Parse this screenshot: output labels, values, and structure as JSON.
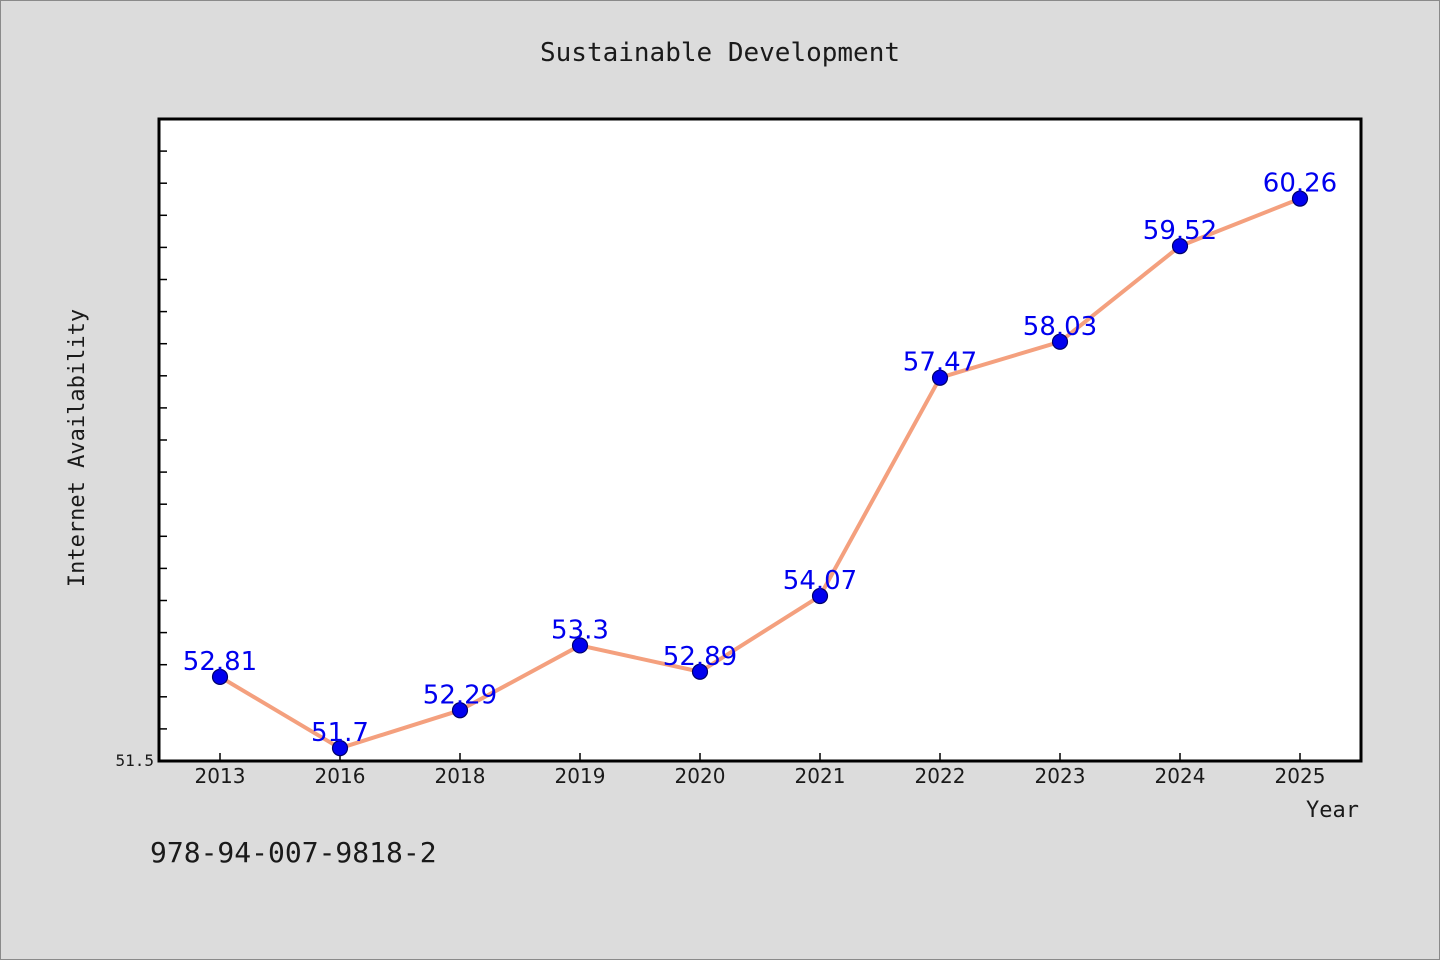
{
  "chart_data": {
    "type": "line",
    "title": "Sustainable Development",
    "xlabel": "Year",
    "ylabel": "Internet Availability",
    "categories": [
      "2013",
      "2016",
      "2018",
      "2019",
      "2020",
      "2021",
      "2022",
      "2023",
      "2024",
      "2025"
    ],
    "series": [
      {
        "values": [
          52.81,
          51.7,
          52.29,
          53.3,
          52.89,
          54.07,
          57.47,
          58.03,
          59.52,
          60.26
        ],
        "labels": [
          "52.81",
          "51.7",
          "52.29",
          "53.3",
          "52.89",
          "54.07",
          "57.47",
          "58.03",
          "59.52",
          "60.26"
        ]
      }
    ],
    "y_tick_labels": [
      "51.5"
    ],
    "ylim": [
      51.5,
      61.5
    ],
    "grid": false,
    "line_color": "#f4a07e",
    "marker_color": "#0000ee",
    "data_label_color": "#0000ee"
  },
  "footnote": "978-94-007-9818-2"
}
